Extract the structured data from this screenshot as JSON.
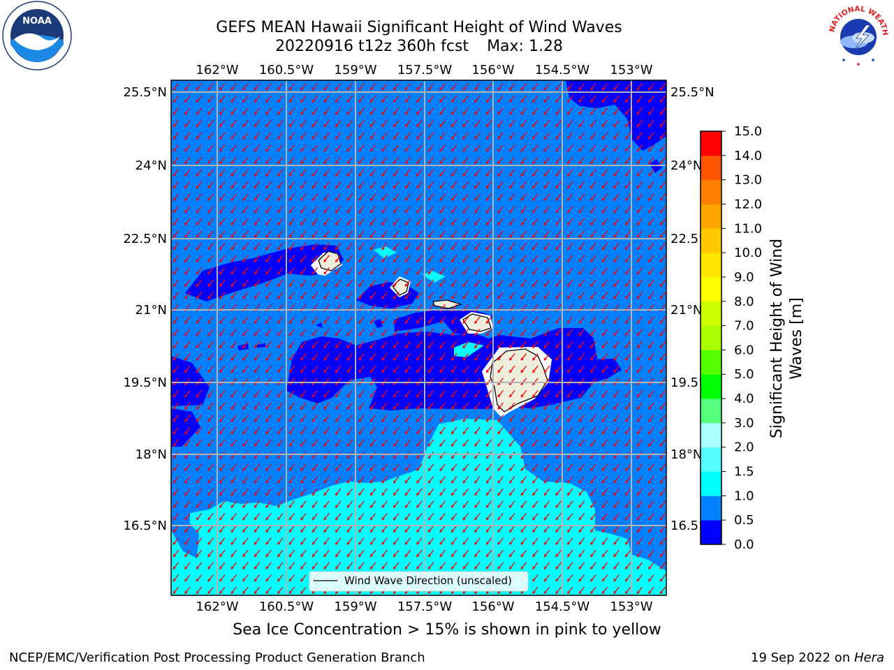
{
  "header": {
    "title_line1": "GEFS MEAN Hawaii Significant Height of Wind Waves",
    "title_line2": "20220916 t12z 360h fcst",
    "max_label": "Max: 1.28"
  },
  "map": {
    "lon_ticks": [
      "162°W",
      "160.5°W",
      "159°W",
      "157.5°W",
      "156°W",
      "154.5°W",
      "153°W"
    ],
    "lat_ticks": [
      "25.5°N",
      "24°N",
      "22.5°N",
      "21°N",
      "19.5°N",
      "18°N",
      "16.5°N"
    ],
    "legend_label": "Wind Wave Direction (unscaled)",
    "colors": {
      "deep": "#0000ff",
      "mid": "#0080ff",
      "light": "#00ffff",
      "land": "#eeeedd",
      "arrow": "#ff0000",
      "grid": "#b4b4b4"
    }
  },
  "colorbar": {
    "title": "Significant Height of Wind Waves [m]",
    "levels": [
      "0.0",
      "0.5",
      "1.0",
      "1.5",
      "2.0",
      "3.0",
      "4.0",
      "5.0",
      "6.0",
      "7.0",
      "8.0",
      "9.0",
      "10.0",
      "11.0",
      "12.0",
      "13.0",
      "14.0",
      "15.0"
    ],
    "colors": [
      "#0000ff",
      "#0080ff",
      "#00ffff",
      "#55ffff",
      "#aaffff",
      "#55ff80",
      "#00ff00",
      "#55ff00",
      "#aaff00",
      "#ccff00",
      "#ffff00",
      "#ffe600",
      "#ffc800",
      "#ffa500",
      "#ff8000",
      "#ff5500",
      "#ff0000"
    ]
  },
  "caption": "Sea Ice Concentration > 15% is shown in pink to yellow",
  "footer": {
    "left": "NCEP/EMC/Verification Post Processing Product Generation Branch",
    "date": "19 Sep 2022 on ",
    "machine": "Hera"
  },
  "logos": {
    "noaa_text": "NOAA",
    "nws_text": "NATIONAL WEATHER SERVICE"
  }
}
